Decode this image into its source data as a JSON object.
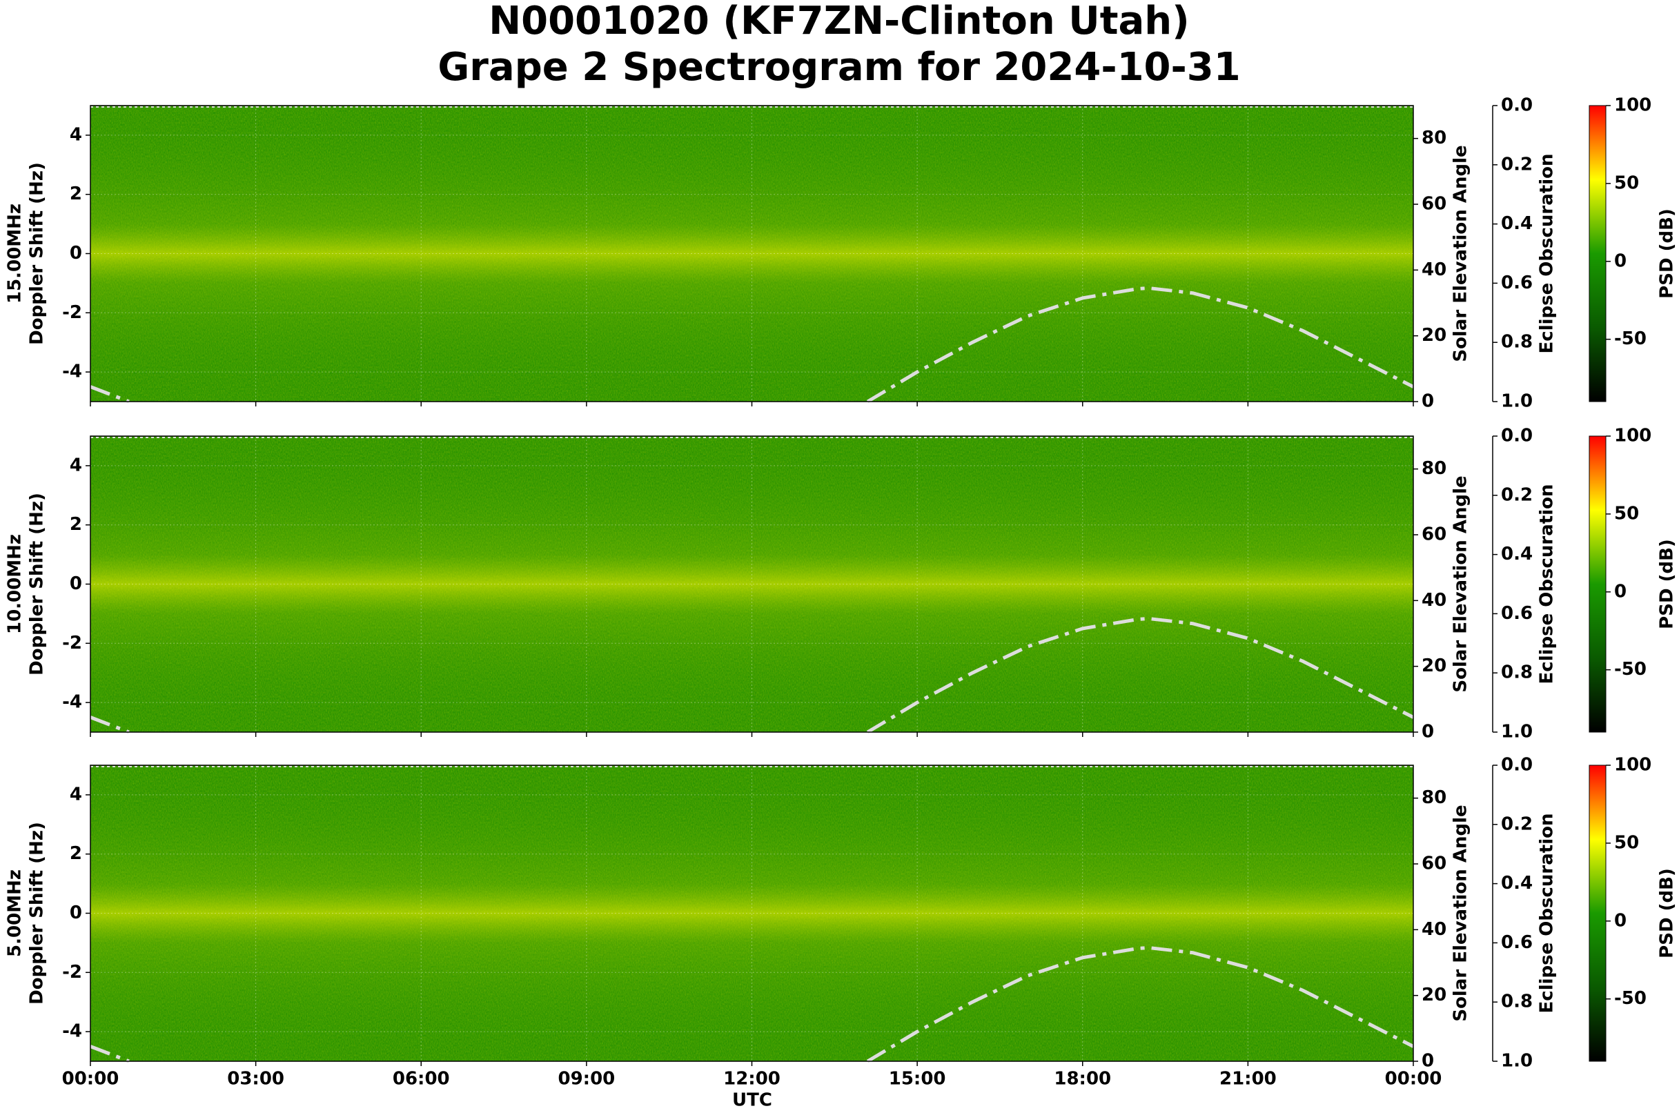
{
  "chart_data": {
    "type": "spectrogram",
    "title": [
      "N0001020 (KF7ZN-Clinton Utah)",
      "Grape 2 Spectrogram for 2024-10-31"
    ],
    "xlabel": "UTC",
    "xlim": [
      0,
      24
    ],
    "xticks": [
      {
        "value": 0,
        "label": "00:00"
      },
      {
        "value": 3,
        "label": "03:00"
      },
      {
        "value": 6,
        "label": "06:00"
      },
      {
        "value": 9,
        "label": "09:00"
      },
      {
        "value": 12,
        "label": "12:00"
      },
      {
        "value": 15,
        "label": "15:00"
      },
      {
        "value": 18,
        "label": "18:00"
      },
      {
        "value": 21,
        "label": "21:00"
      },
      {
        "value": 24,
        "label": "00:00"
      }
    ],
    "ylabel": "Doppler Shift (Hz)",
    "ylim": [
      -5,
      5
    ],
    "yticks": [
      -4,
      -2,
      0,
      2,
      4
    ],
    "y2label": "Solar Elevation Angle",
    "y2lim": [
      0,
      90
    ],
    "y2ticks": [
      0,
      20,
      40,
      60,
      80
    ],
    "y3label": "Eclipse Obscuration",
    "y3lim": [
      1,
      0
    ],
    "y3ticks": [
      {
        "value": 0,
        "label": "0.0"
      },
      0.2,
      0.4,
      0.6,
      0.8,
      {
        "value": 1,
        "label": "1.0"
      }
    ],
    "colorbar_label": "PSD (dB)",
    "clim": [
      -90,
      100
    ],
    "cticks": [
      -50,
      0,
      50,
      100
    ],
    "colormap": [
      "#000000",
      "#0a5a00",
      "#1a9a00",
      "#ffff00",
      "#ff0000"
    ],
    "grid": true,
    "panels": [
      "15.00MHz",
      "10.00MHz",
      "5.00MHz"
    ],
    "solar_elevation": {
      "color": "#dddddd",
      "x": [
        0,
        0.7,
        7,
        14.1,
        15,
        16,
        17,
        18,
        19,
        19.2,
        20,
        21,
        22,
        23,
        24
      ],
      "values": [
        4.5,
        0,
        null,
        0,
        9,
        18,
        26,
        31.5,
        34.3,
        34.5,
        33,
        28.5,
        21.5,
        13,
        4.5
      ]
    }
  }
}
